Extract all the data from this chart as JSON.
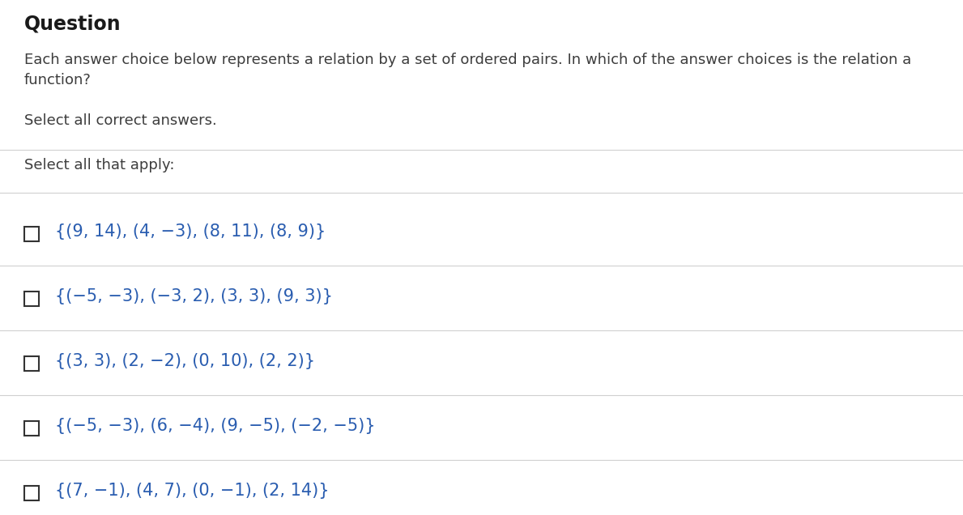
{
  "title": "Question",
  "question_text": "Each answer choice below represents a relation by a set of ordered pairs. In which of the answer choices is the relation a\nfunction?",
  "select_all_correct": "Select all correct answers.",
  "select_all_apply": "Select all that apply:",
  "choices": [
    "{(9, 14), (4, −3), (8, 11), (8, 9)}",
    "{(−5, −3), (−3, 2), (3, 3), (9, 3)}",
    "{(3, 3), (2, −2), (0, 10), (2, 2)}",
    "{(−5, −3), (6, −4), (9, −5), (−2, −5)}",
    "{(7, −1), (4, 7), (0, −1), (2, 14)}"
  ],
  "bg_color": "#ffffff",
  "title_color": "#1a1a1a",
  "question_color": "#3d3d3d",
  "select_color": "#3d3d3d",
  "choice_color": "#2a5db0",
  "divider_color": "#d0d0d0",
  "checkbox_color": "#333333",
  "title_fontsize": 17,
  "question_fontsize": 13,
  "choice_fontsize": 15,
  "label_fontsize": 13,
  "fig_width": 11.89,
  "fig_height": 6.36,
  "dpi": 100
}
